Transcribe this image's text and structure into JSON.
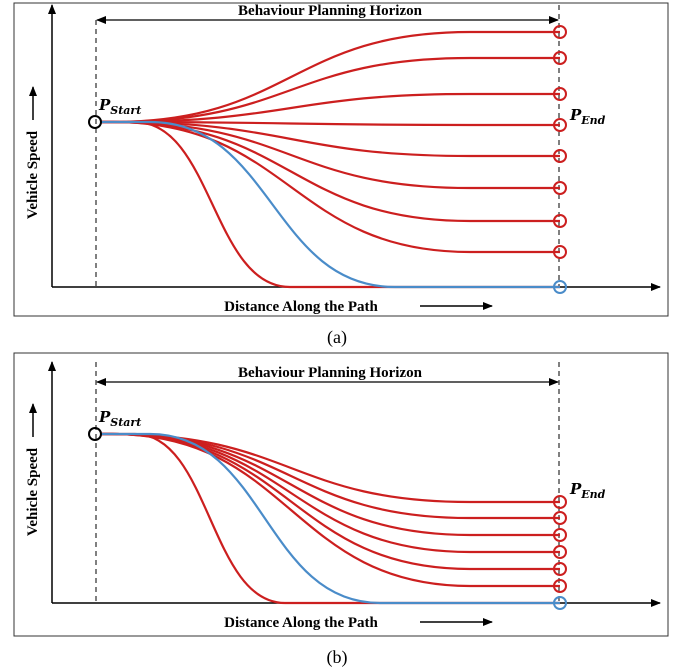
{
  "panels": [
    {
      "horizon_label": "Behaviour Planning Horizon",
      "y_label": "Vehicle Speed",
      "x_label": "Distance Along the Path",
      "start_label": {
        "symbol": "P",
        "subscript": "Start"
      },
      "end_label": {
        "symbol": "P",
        "subscript": "End"
      },
      "caption": "(a)"
    },
    {
      "horizon_label": "Behaviour Planning Horizon",
      "y_label": "Vehicle Speed",
      "x_label": "Distance Along the Path",
      "start_label": {
        "symbol": "P",
        "subscript": "Start"
      },
      "end_label": {
        "symbol": "P",
        "subscript": "End"
      },
      "caption": "(b)"
    }
  ]
}
